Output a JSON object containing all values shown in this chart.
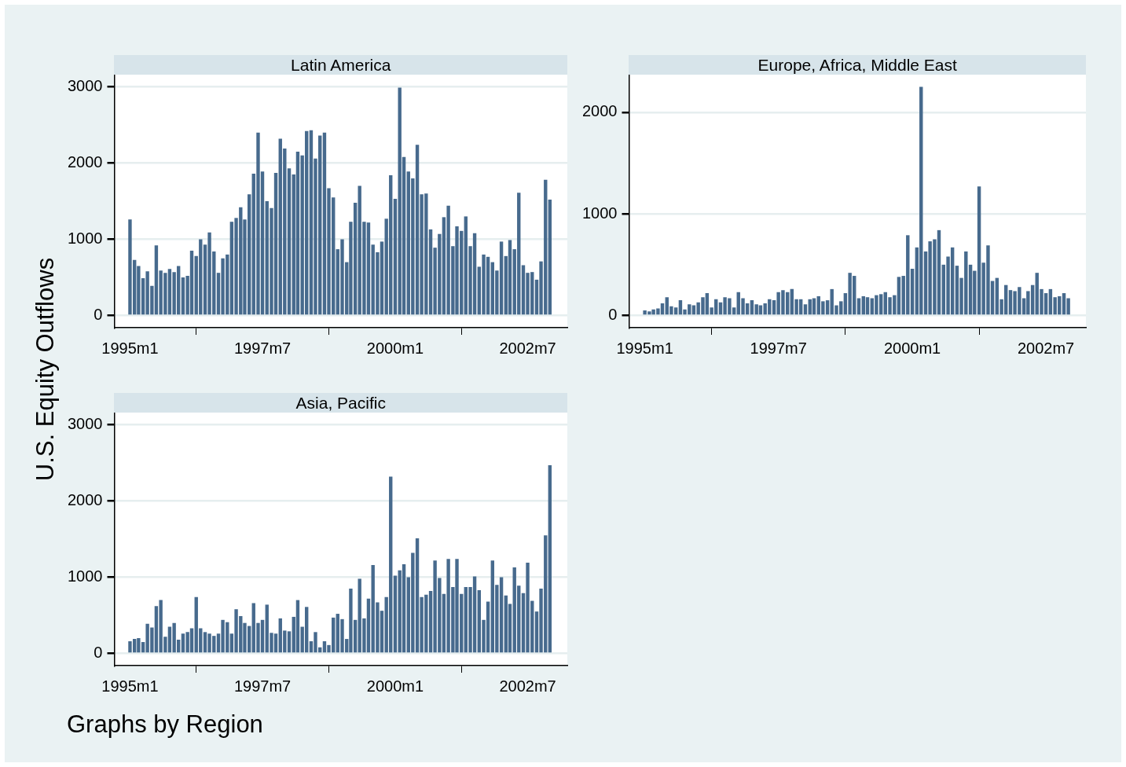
{
  "chart_data": [
    {
      "type": "bar",
      "title": "Latin America",
      "ylabel": "U.S. Equity Outflows",
      "color": "#476a8d",
      "grid": "y",
      "legend": false,
      "x": [
        "1995-01",
        "1995-02",
        "1995-03",
        "1995-04",
        "1995-05",
        "1995-06",
        "1995-07",
        "1995-08",
        "1995-09",
        "1995-10",
        "1995-11",
        "1995-12",
        "1996-01",
        "1996-02",
        "1996-03",
        "1996-04",
        "1996-05",
        "1996-06",
        "1996-07",
        "1996-08",
        "1996-09",
        "1996-10",
        "1996-11",
        "1996-12",
        "1997-01",
        "1997-02",
        "1997-03",
        "1997-04",
        "1997-05",
        "1997-06",
        "1997-07",
        "1997-08",
        "1997-09",
        "1997-10",
        "1997-11",
        "1997-12",
        "1998-01",
        "1998-02",
        "1998-03",
        "1998-04",
        "1998-05",
        "1998-06",
        "1998-07",
        "1998-08",
        "1998-09",
        "1998-10",
        "1998-11",
        "1998-12",
        "1999-01",
        "1999-02",
        "1999-03",
        "1999-04",
        "1999-05",
        "1999-06",
        "1999-07",
        "1999-08",
        "1999-09",
        "1999-10",
        "1999-11",
        "1999-12",
        "2000-01",
        "2000-02",
        "2000-03",
        "2000-04",
        "2000-05",
        "2000-06",
        "2000-07",
        "2000-08",
        "2000-09",
        "2000-10",
        "2000-11",
        "2000-12",
        "2001-01",
        "2001-02",
        "2001-03",
        "2001-04",
        "2001-05",
        "2001-06",
        "2001-07",
        "2001-08",
        "2001-09",
        "2001-10",
        "2001-11",
        "2001-12",
        "2002-01",
        "2002-02",
        "2002-03",
        "2002-04",
        "2002-05",
        "2002-06",
        "2002-07",
        "2002-08",
        "2002-09",
        "2002-10",
        "2002-11",
        "2002-12"
      ],
      "values": [
        1260,
        730,
        650,
        490,
        580,
        390,
        920,
        590,
        560,
        610,
        570,
        650,
        500,
        520,
        850,
        780,
        1000,
        930,
        1090,
        840,
        560,
        750,
        800,
        1230,
        1280,
        1420,
        1260,
        1590,
        1860,
        2400,
        1890,
        1500,
        1410,
        1870,
        2320,
        2190,
        1930,
        1850,
        2150,
        2100,
        2420,
        2430,
        2060,
        2360,
        2400,
        1670,
        1550,
        870,
        1000,
        700,
        1230,
        1480,
        1700,
        1230,
        1220,
        930,
        830,
        970,
        1270,
        1840,
        1530,
        2990,
        2080,
        1890,
        1800,
        2240,
        1590,
        1600,
        1130,
        890,
        1070,
        1290,
        1440,
        910,
        1170,
        1110,
        1300,
        910,
        1080,
        640,
        800,
        770,
        700,
        590,
        970,
        780,
        990,
        870,
        1610,
        660,
        560,
        570,
        470,
        710,
        1780,
        1520
      ],
      "xlim": [
        "1994-09-15",
        "2003-03-31"
      ],
      "xticks": [
        {
          "value": "1995-01",
          "label": "1995m1"
        },
        {
          "value": "1997-07",
          "label": "1997m7"
        },
        {
          "value": "2000-01",
          "label": "2000m1"
        },
        {
          "value": "2002-07",
          "label": "2002m7"
        }
      ],
      "ylim": [
        -160,
        3160
      ],
      "yticks": [
        0,
        1000,
        2000,
        3000
      ]
    },
    {
      "type": "bar",
      "title": "Europe, Africa, Middle East",
      "color": "#476a8d",
      "grid": "y",
      "legend": false,
      "x": [
        "1995-01",
        "1995-02",
        "1995-03",
        "1995-04",
        "1995-05",
        "1995-06",
        "1995-07",
        "1995-08",
        "1995-09",
        "1995-10",
        "1995-11",
        "1995-12",
        "1996-01",
        "1996-02",
        "1996-03",
        "1996-04",
        "1996-05",
        "1996-06",
        "1996-07",
        "1996-08",
        "1996-09",
        "1996-10",
        "1996-11",
        "1996-12",
        "1997-01",
        "1997-02",
        "1997-03",
        "1997-04",
        "1997-05",
        "1997-06",
        "1997-07",
        "1997-08",
        "1997-09",
        "1997-10",
        "1997-11",
        "1997-12",
        "1998-01",
        "1998-02",
        "1998-03",
        "1998-04",
        "1998-05",
        "1998-06",
        "1998-07",
        "1998-08",
        "1998-09",
        "1998-10",
        "1998-11",
        "1998-12",
        "1999-01",
        "1999-02",
        "1999-03",
        "1999-04",
        "1999-05",
        "1999-06",
        "1999-07",
        "1999-08",
        "1999-09",
        "1999-10",
        "1999-11",
        "1999-12",
        "2000-01",
        "2000-02",
        "2000-03",
        "2000-04",
        "2000-05",
        "2000-06",
        "2000-07",
        "2000-08",
        "2000-09",
        "2000-10",
        "2000-11",
        "2000-12",
        "2001-01",
        "2001-02",
        "2001-03",
        "2001-04",
        "2001-05",
        "2001-06",
        "2001-07",
        "2001-08",
        "2001-09",
        "2001-10",
        "2001-11",
        "2001-12",
        "2002-01",
        "2002-02",
        "2002-03",
        "2002-04",
        "2002-05",
        "2002-06",
        "2002-07",
        "2002-08",
        "2002-09",
        "2002-10",
        "2002-11",
        "2002-12"
      ],
      "values": [
        50,
        40,
        60,
        70,
        120,
        180,
        90,
        80,
        150,
        60,
        110,
        100,
        130,
        180,
        220,
        80,
        160,
        130,
        180,
        170,
        80,
        230,
        170,
        120,
        150,
        110,
        100,
        120,
        160,
        150,
        230,
        250,
        230,
        260,
        160,
        160,
        110,
        160,
        170,
        190,
        140,
        150,
        260,
        100,
        140,
        220,
        420,
        390,
        170,
        190,
        180,
        170,
        200,
        210,
        230,
        180,
        200,
        380,
        390,
        790,
        460,
        670,
        2250,
        630,
        730,
        750,
        840,
        500,
        580,
        670,
        490,
        370,
        630,
        500,
        440,
        1270,
        520,
        690,
        340,
        370,
        160,
        300,
        250,
        240,
        280,
        170,
        240,
        300,
        420,
        260,
        220,
        260,
        180,
        190,
        220,
        170
      ],
      "xlim": [
        "1994-09-15",
        "2003-03-31"
      ],
      "xticks": [
        {
          "value": "1995-01",
          "label": "1995m1"
        },
        {
          "value": "1997-07",
          "label": "1997m7"
        },
        {
          "value": "2000-01",
          "label": "2000m1"
        },
        {
          "value": "2002-07",
          "label": "2002m7"
        }
      ],
      "ylim": [
        -120,
        2370
      ],
      "yticks": [
        0,
        1000,
        2000
      ]
    },
    {
      "type": "bar",
      "title": "Asia, Pacific",
      "color": "#476a8d",
      "grid": "y",
      "legend": false,
      "annotations": [
        "Graphs by Region"
      ],
      "x": [
        "1995-01",
        "1995-02",
        "1995-03",
        "1995-04",
        "1995-05",
        "1995-06",
        "1995-07",
        "1995-08",
        "1995-09",
        "1995-10",
        "1995-11",
        "1995-12",
        "1996-01",
        "1996-02",
        "1996-03",
        "1996-04",
        "1996-05",
        "1996-06",
        "1996-07",
        "1996-08",
        "1996-09",
        "1996-10",
        "1996-11",
        "1996-12",
        "1997-01",
        "1997-02",
        "1997-03",
        "1997-04",
        "1997-05",
        "1997-06",
        "1997-07",
        "1997-08",
        "1997-09",
        "1997-10",
        "1997-11",
        "1997-12",
        "1998-01",
        "1998-02",
        "1998-03",
        "1998-04",
        "1998-05",
        "1998-06",
        "1998-07",
        "1998-08",
        "1998-09",
        "1998-10",
        "1998-11",
        "1998-12",
        "1999-01",
        "1999-02",
        "1999-03",
        "1999-04",
        "1999-05",
        "1999-06",
        "1999-07",
        "1999-08",
        "1999-09",
        "1999-10",
        "1999-11",
        "1999-12",
        "2000-01",
        "2000-02",
        "2000-03",
        "2000-04",
        "2000-05",
        "2000-06",
        "2000-07",
        "2000-08",
        "2000-09",
        "2000-10",
        "2000-11",
        "2000-12",
        "2001-01",
        "2001-02",
        "2001-03",
        "2001-04",
        "2001-05",
        "2001-06",
        "2001-07",
        "2001-08",
        "2001-09",
        "2001-10",
        "2001-11",
        "2001-12",
        "2002-01",
        "2002-02",
        "2002-03",
        "2002-04",
        "2002-05",
        "2002-06",
        "2002-07",
        "2002-08",
        "2002-09",
        "2002-10",
        "2002-11",
        "2002-12"
      ],
      "values": [
        160,
        190,
        200,
        150,
        390,
        340,
        620,
        700,
        220,
        350,
        400,
        180,
        260,
        280,
        330,
        740,
        330,
        280,
        260,
        230,
        260,
        440,
        410,
        260,
        580,
        490,
        400,
        360,
        660,
        400,
        440,
        640,
        270,
        260,
        460,
        300,
        290,
        480,
        700,
        350,
        610,
        160,
        280,
        80,
        160,
        110,
        470,
        520,
        450,
        190,
        850,
        440,
        980,
        460,
        720,
        1160,
        670,
        560,
        740,
        2320,
        1020,
        1090,
        1170,
        1000,
        1320,
        1510,
        740,
        770,
        820,
        1220,
        990,
        780,
        1240,
        870,
        1240,
        780,
        870,
        870,
        1010,
        830,
        440,
        680,
        1220,
        900,
        1000,
        760,
        650,
        1130,
        890,
        790,
        1190,
        690,
        550,
        850,
        1550,
        2470
      ],
      "xlim": [
        "1994-09-15",
        "2003-03-31"
      ],
      "xticks": [
        {
          "value": "1995-01",
          "label": "1995m1"
        },
        {
          "value": "1997-07",
          "label": "1997m7"
        },
        {
          "value": "2000-01",
          "label": "2000m1"
        },
        {
          "value": "2002-07",
          "label": "2002m7"
        }
      ],
      "ylim": [
        -160,
        3160
      ],
      "yticks": [
        0,
        1000,
        2000,
        3000
      ]
    }
  ]
}
